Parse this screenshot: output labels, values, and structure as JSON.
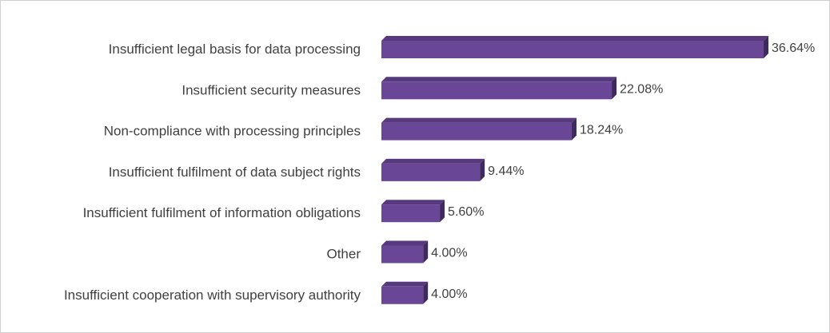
{
  "chart_data": {
    "type": "bar",
    "orientation": "horizontal",
    "style": "3d",
    "categories": [
      "Insufficient legal basis for data processing",
      "Insufficient security measures",
      "Non-compliance with processing principles",
      "Insufficient fulfilment of data subject rights",
      "Insufficient fulfilment of information obligations",
      "Other",
      "Insufficient cooperation with supervisory authority"
    ],
    "values": [
      36.64,
      22.08,
      18.24,
      9.44,
      5.6,
      4.0,
      4.0
    ],
    "value_labels": [
      "36.64%",
      "22.08%",
      "18.24%",
      "9.44%",
      "5.60%",
      "4.00%",
      "4.00%"
    ],
    "unit": "%",
    "xlim": [
      0,
      36.64
    ],
    "grid": false,
    "legend": "none",
    "colors": {
      "bar_front": "#6a4796",
      "bar_top": "#573a7d",
      "bar_side": "#3f2a5d",
      "text": "#404040",
      "border": "#d0d0d0"
    }
  }
}
